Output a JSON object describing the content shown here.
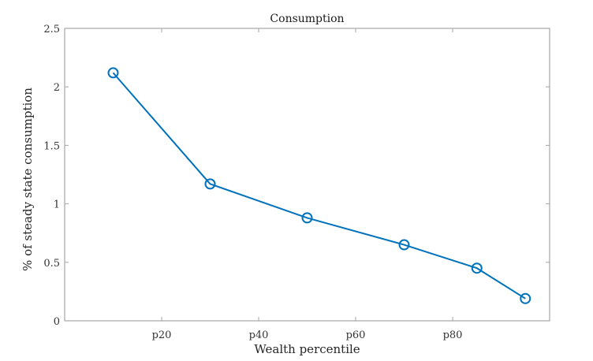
{
  "chart_data": {
    "type": "line",
    "title": "Consumption",
    "xlabel": "Wealth percentile",
    "ylabel": "% of steady state consumption",
    "xlim": [
      0,
      100
    ],
    "ylim": [
      0,
      2.5
    ],
    "x_ticks": [
      {
        "value": 20,
        "label": "p20"
      },
      {
        "value": 40,
        "label": "p40"
      },
      {
        "value": 60,
        "label": "p60"
      },
      {
        "value": 80,
        "label": "p80"
      }
    ],
    "y_ticks": [
      {
        "value": 0,
        "label": "0"
      },
      {
        "value": 0.5,
        "label": "0.5"
      },
      {
        "value": 1,
        "label": "1"
      },
      {
        "value": 1.5,
        "label": "1.5"
      },
      {
        "value": 2,
        "label": "2"
      },
      {
        "value": 2.5,
        "label": "2.5"
      }
    ],
    "grid": false,
    "legend": "none",
    "series": [
      {
        "name": "Consumption",
        "color": "#0072BD",
        "marker": "circle-open",
        "x": [
          10,
          30,
          50,
          70,
          85,
          95
        ],
        "values": [
          2.12,
          1.17,
          0.88,
          0.65,
          0.45,
          0.19
        ]
      }
    ]
  },
  "colors": {
    "axis": "#a6a6a6",
    "text": "#262626"
  }
}
